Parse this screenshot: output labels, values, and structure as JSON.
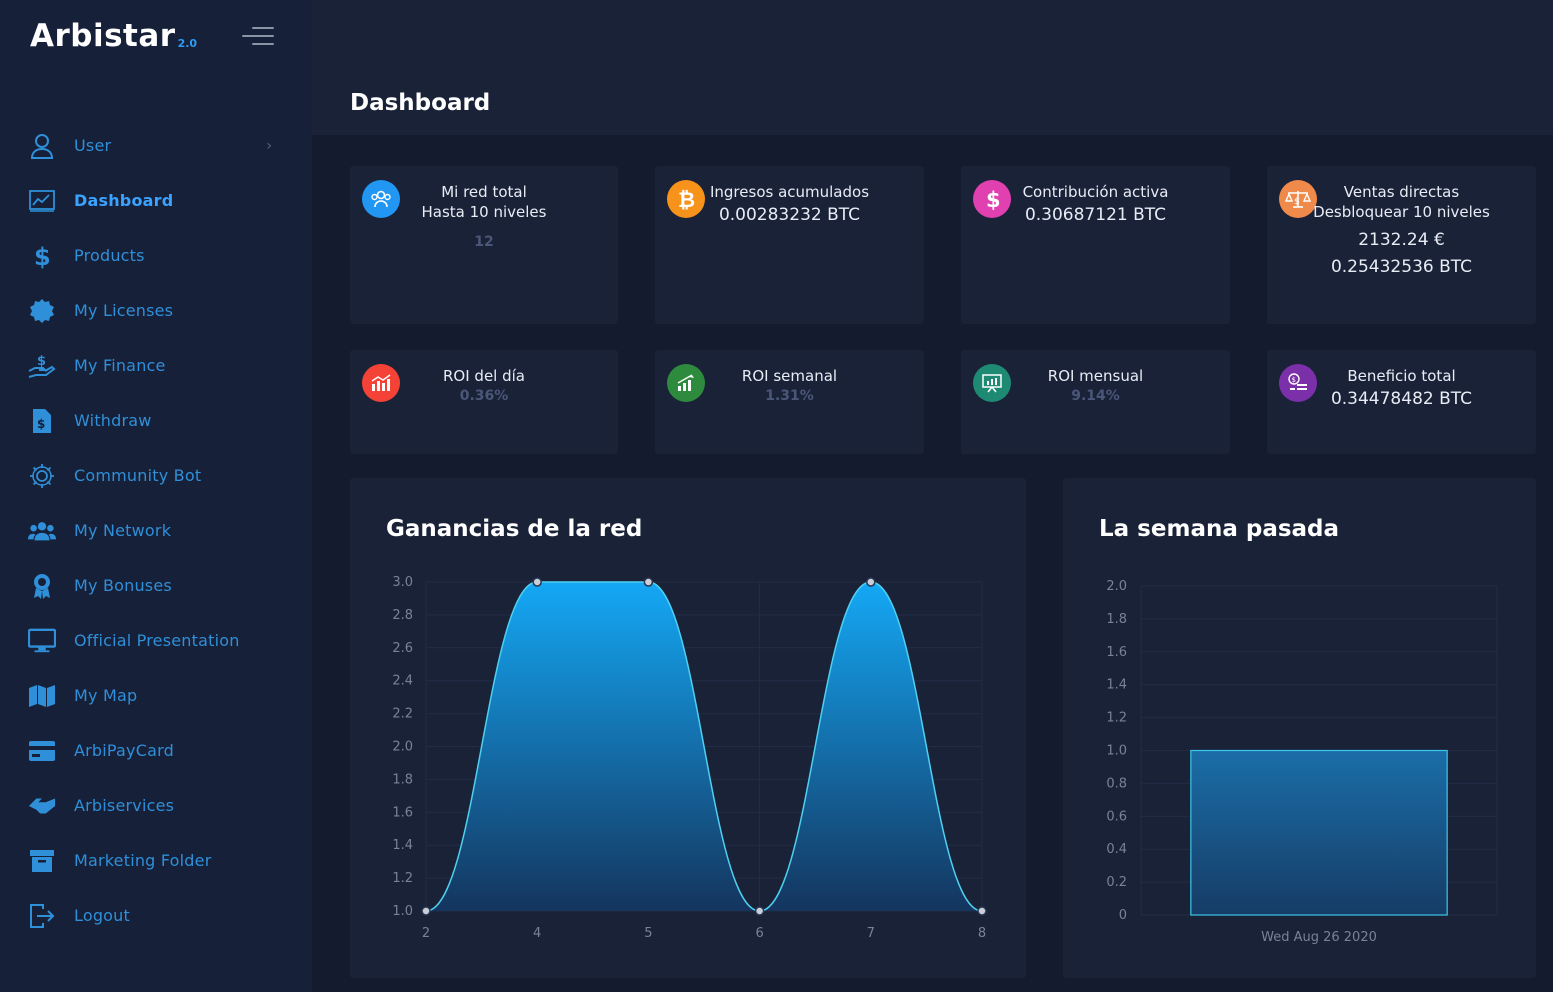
{
  "brand": {
    "name": "Arbistar",
    "version": "2.0"
  },
  "page": {
    "title": "Dashboard"
  },
  "sidebar": {
    "items": [
      {
        "label": "User",
        "icon": "user-icon",
        "has_chevron": true
      },
      {
        "label": "Dashboard",
        "icon": "chart-icon",
        "active": true
      },
      {
        "label": "Products",
        "icon": "dollar-icon"
      },
      {
        "label": "My Licenses",
        "icon": "badge-icon"
      },
      {
        "label": "My Finance",
        "icon": "hand-coin-icon"
      },
      {
        "label": "Withdraw",
        "icon": "document-dollar-icon"
      },
      {
        "label": "Community Bot",
        "icon": "gear-icon"
      },
      {
        "label": "My Network",
        "icon": "users-icon"
      },
      {
        "label": "My Bonuses",
        "icon": "award-icon"
      },
      {
        "label": "Official Presentation",
        "icon": "monitor-icon"
      },
      {
        "label": "My Map",
        "icon": "map-icon"
      },
      {
        "label": "ArbiPayCard",
        "icon": "credit-card-icon"
      },
      {
        "label": "Arbiservices",
        "icon": "handshake-icon"
      },
      {
        "label": "Marketing Folder",
        "icon": "archive-icon"
      },
      {
        "label": "Logout",
        "icon": "logout-icon"
      }
    ]
  },
  "stats": {
    "red_total": {
      "title": "Mi red total",
      "subtitle": "Hasta 10 niveles",
      "value": "12"
    },
    "ingresos": {
      "title": "Ingresos acumulados",
      "value": "0.00283232 BTC"
    },
    "contribucion": {
      "title": "Contribución activa",
      "value": "0.30687121 BTC"
    },
    "ventas": {
      "title": "Ventas directas",
      "subtitle": "Desbloquear 10 niveles",
      "value_eur": "2132.24 €",
      "value_btc": "0.25432536 BTC"
    },
    "roi_dia": {
      "title": "ROI del día",
      "value": "0.36%"
    },
    "roi_semanal": {
      "title": "ROI semanal",
      "value": "1.31%"
    },
    "roi_mensual": {
      "title": "ROI mensual",
      "value": "9.14%"
    },
    "beneficio": {
      "title": "Beneficio total",
      "value": "0.34478482 BTC"
    }
  },
  "colors": {
    "accent": "#2f8fd8",
    "card_bg": "#1a2238",
    "icon_blue": "#2196f3",
    "icon_orange": "#f7931a",
    "icon_pink": "#e040b0",
    "icon_salmon": "#f08a4b",
    "icon_red": "#f44336",
    "icon_green": "#2e8b3e",
    "icon_teal": "#1f8a73",
    "icon_purple": "#7b2fa8"
  },
  "chart_data": [
    {
      "type": "area",
      "title": "Ganancias de la red",
      "x": [
        2,
        4,
        5,
        6,
        7,
        8
      ],
      "values": [
        1.0,
        3.0,
        3.0,
        1.0,
        3.0,
        1.0
      ],
      "x_ticks": [
        "2",
        "4",
        "5",
        "6",
        "7",
        "8"
      ],
      "y_ticks": [
        "1.0",
        "1.2",
        "1.4",
        "1.6",
        "1.8",
        "2.0",
        "2.2",
        "2.4",
        "2.6",
        "2.8",
        "3.0"
      ],
      "ylim": [
        1.0,
        3.0
      ],
      "grid": true
    },
    {
      "type": "bar",
      "title": "La semana pasada",
      "categories": [
        "Wed Aug 26 2020"
      ],
      "values": [
        1.0
      ],
      "y_ticks": [
        "0",
        "0.2",
        "0.4",
        "0.6",
        "0.8",
        "1.0",
        "1.2",
        "1.4",
        "1.6",
        "1.8",
        "2.0"
      ],
      "ylim": [
        0,
        2.0
      ],
      "grid": true
    }
  ]
}
